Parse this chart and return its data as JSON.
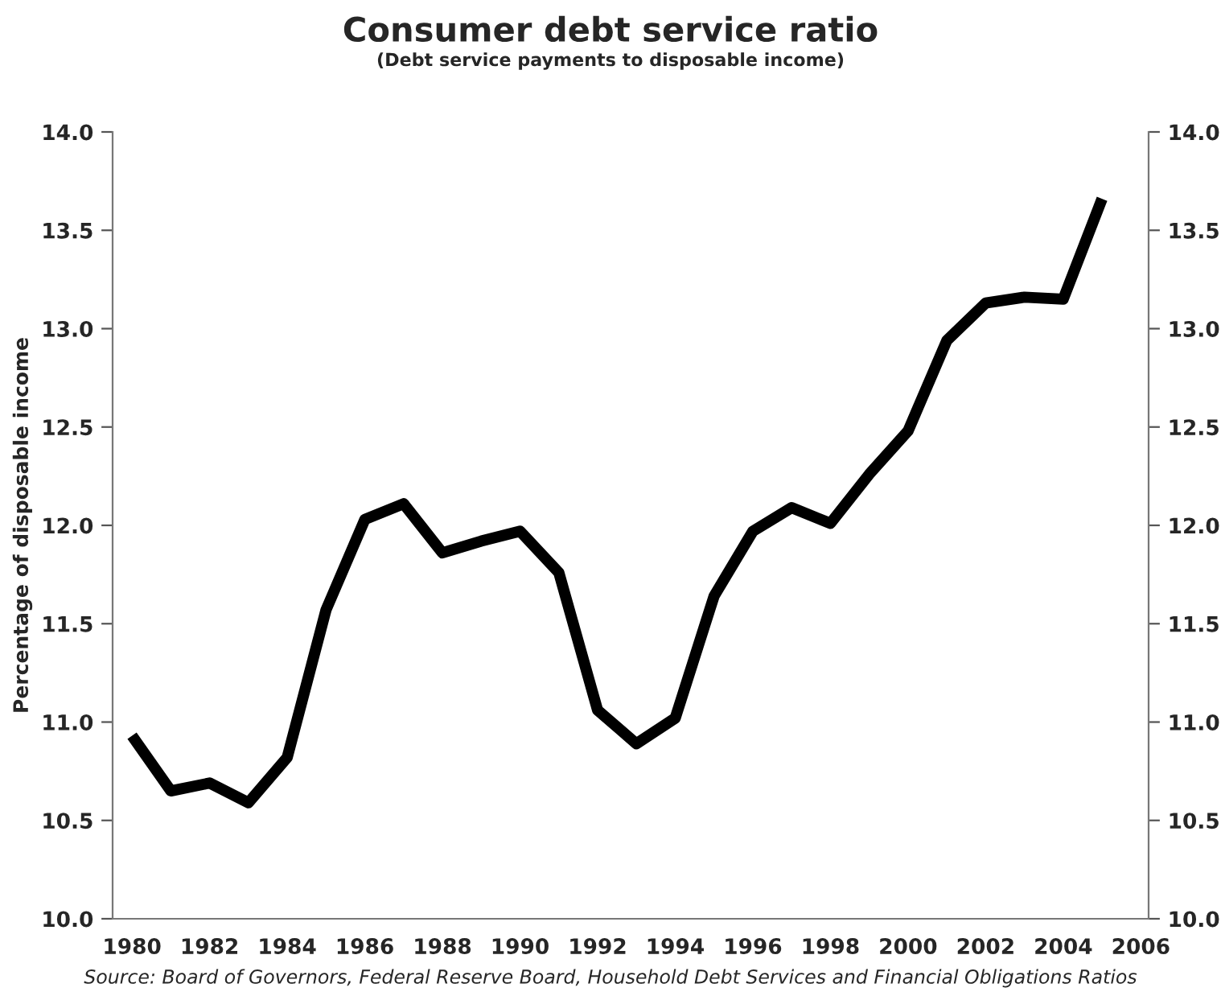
{
  "chart_data": {
    "type": "line",
    "title": "Consumer debt service ratio",
    "subtitle": "(Debt service payments to disposable income)",
    "ylabel": "Percentage of disposable income",
    "annotations": [
      "Source: Board of Governors, Federal Reserve Board, Household Debt Services and Financial Obligations Ratios"
    ],
    "x": [
      1980,
      1981,
      1982,
      1983,
      1984,
      1985,
      1986,
      1987,
      1988,
      1989,
      1990,
      1991,
      1992,
      1993,
      1994,
      1995,
      1996,
      1997,
      1998,
      1999,
      2000,
      2001,
      2002,
      2003,
      2004,
      2005
    ],
    "series": [
      {
        "color": "#000000",
        "values": [
          10.93,
          10.65,
          10.69,
          10.59,
          10.82,
          11.57,
          12.03,
          12.11,
          11.86,
          11.92,
          11.97,
          11.76,
          11.06,
          10.89,
          11.02,
          11.64,
          11.97,
          12.09,
          12.01,
          12.26,
          12.48,
          12.94,
          13.13,
          13.16,
          13.15,
          13.66
        ]
      }
    ],
    "xlim": [
      1979.5,
      2006.2
    ],
    "xticks": [
      1980,
      1982,
      1984,
      1986,
      1988,
      1990,
      1992,
      1994,
      1996,
      1998,
      2000,
      2002,
      2004,
      2006
    ],
    "ylim": [
      10.0,
      14.0
    ],
    "yticks": [
      {
        "value": 10,
        "label": "10.0"
      },
      {
        "value": 10.5,
        "label": "10.5"
      },
      {
        "value": 11,
        "label": "11.0"
      },
      {
        "value": 11.5,
        "label": "11.5"
      },
      {
        "value": 12,
        "label": "12.0"
      },
      {
        "value": 12.5,
        "label": "12.5"
      },
      {
        "value": 13,
        "label": "13.0"
      },
      {
        "value": 13.5,
        "label": "13.5"
      },
      {
        "value": 14,
        "label": "14.0"
      }
    ],
    "y2lim": [
      10.0,
      14.0
    ],
    "y2ticks": [
      {
        "value": 10,
        "label": "10.0"
      },
      {
        "value": 10.5,
        "label": "10.5"
      },
      {
        "value": 11,
        "label": "11.0"
      },
      {
        "value": 11.5,
        "label": "11.5"
      },
      {
        "value": 12,
        "label": "12.0"
      },
      {
        "value": 12.5,
        "label": "12.5"
      },
      {
        "value": 13,
        "label": "13.0"
      },
      {
        "value": 13.5,
        "label": "13.5"
      },
      {
        "value": 14,
        "label": "14.0"
      }
    ],
    "grid": false,
    "marker": "none",
    "line_style": "solid"
  }
}
